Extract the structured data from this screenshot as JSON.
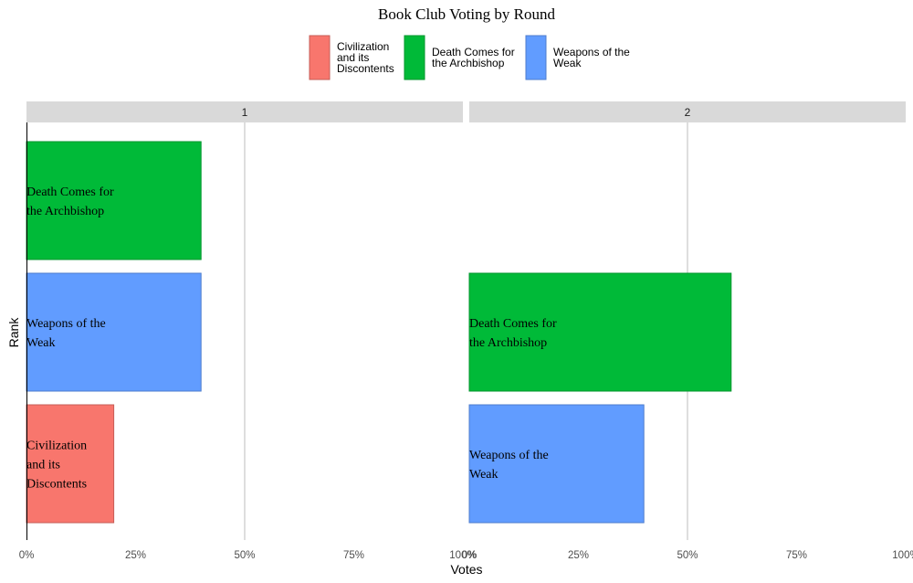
{
  "chart_data": {
    "type": "bar",
    "orientation": "horizontal",
    "title": "Book Club Voting by Round",
    "xlabel": "Votes",
    "ylabel": "Rank",
    "xlim": [
      0,
      1
    ],
    "x_ticks": [
      "0%",
      "25%",
      "50%",
      "75%",
      "100%"
    ],
    "grid": "vertical at 50%",
    "legend_position": "top",
    "legend": [
      {
        "label": "Civilization and its Discontents",
        "lines": [
          "Civilization",
          "and its",
          "Discontents"
        ],
        "color": "#F8766D"
      },
      {
        "label": "Death Comes for the Archbishop",
        "lines": [
          "Death Comes for",
          "the Archbishop"
        ],
        "color": "#00BA38"
      },
      {
        "label": "Weapons of the Weak",
        "lines": [
          "Weapons of the",
          "Weak"
        ],
        "color": "#619CFF"
      }
    ],
    "panels": [
      {
        "facet_label": "1",
        "bars": [
          {
            "rank": 1,
            "book": "Death Comes for the Archbishop",
            "value": 0.4,
            "label_lines": [
              "Death Comes for",
              "the Archbishop"
            ],
            "color": "#00BA38"
          },
          {
            "rank": 2,
            "book": "Weapons of the Weak",
            "value": 0.4,
            "label_lines": [
              "Weapons of the",
              "Weak"
            ],
            "color": "#619CFF"
          },
          {
            "rank": 3,
            "book": "Civilization and its Discontents",
            "value": 0.2,
            "label_lines": [
              "Civilization",
              "and its",
              "Discontents"
            ],
            "color": "#F8766D"
          }
        ]
      },
      {
        "facet_label": "2",
        "bars": [
          {
            "rank": 2,
            "book": "Death Comes for the Archbishop",
            "value": 0.6,
            "label_lines": [
              "Death Comes for",
              "the Archbishop"
            ],
            "color": "#00BA38"
          },
          {
            "rank": 3,
            "book": "Weapons of the Weak",
            "value": 0.4,
            "label_lines": [
              "Weapons of the",
              "Weak"
            ],
            "color": "#619CFF"
          }
        ]
      }
    ]
  }
}
